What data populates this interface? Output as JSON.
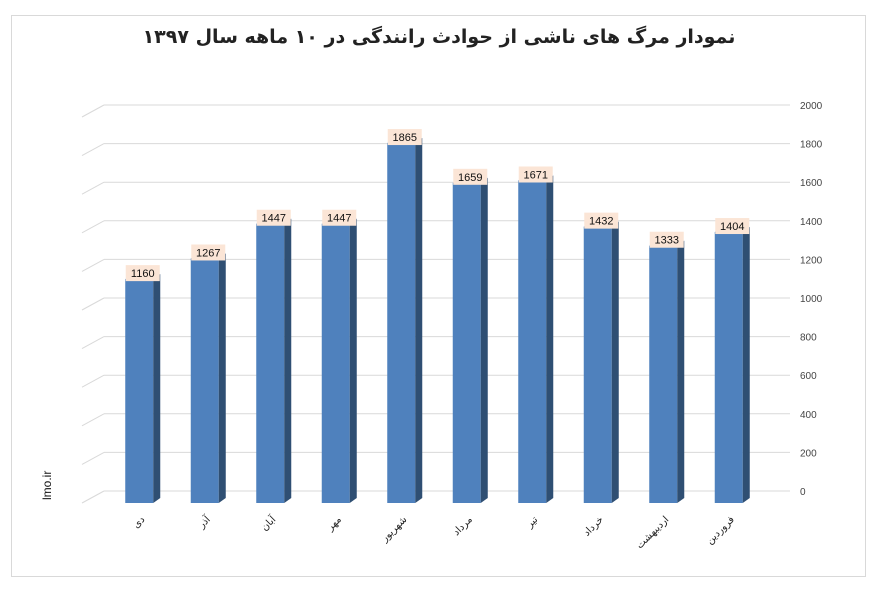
{
  "chart_data": {
    "type": "bar",
    "title": "نمودار مرگ های ناشی از حوادث رانندگی در ۱۰ ماهه سال ۱۳۹۷",
    "categories": [
      "دی",
      "آذر",
      "آبان",
      "مهر",
      "شهریور",
      "مرداد",
      "تیر",
      "خرداد",
      "اردیبهشت",
      "فروردین"
    ],
    "values": [
      1160,
      1267,
      1447,
      1447,
      1865,
      1659,
      1671,
      1432,
      1333,
      1404
    ],
    "yticks": [
      "0",
      "200",
      "400",
      "600",
      "800",
      "1000",
      "1200",
      "1400",
      "1600",
      "1800",
      "2000"
    ],
    "ylim": [
      0,
      2000
    ],
    "y_axis_side": "right",
    "grid": true,
    "data_labels": true,
    "bar_color": "#4f81bd",
    "bar_side_color": "#2f4f73",
    "label_bg": "#fbe5d6"
  },
  "watermark": "lmo.ir"
}
